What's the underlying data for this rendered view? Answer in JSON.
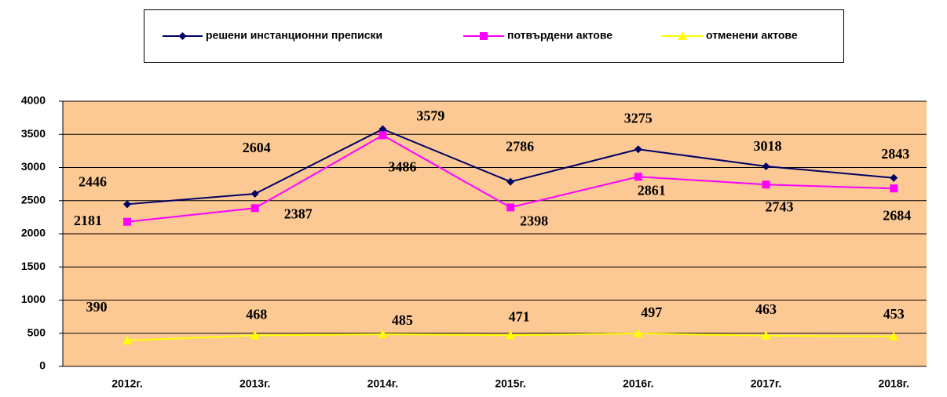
{
  "chart_data": {
    "type": "line",
    "categories": [
      "2012г.",
      "2013г.",
      "2014г.",
      "2015г.",
      "2016г.",
      "2017г.",
      "2018г."
    ],
    "series": [
      {
        "name": "решени инстанционни преписки",
        "color": "#000066",
        "marker": "diamond",
        "values": [
          2446,
          2604,
          3579,
          2786,
          3275,
          3018,
          2843
        ]
      },
      {
        "name": "потвърдени актове",
        "color": "#ff00ff",
        "marker": "square",
        "values": [
          2181,
          2387,
          3486,
          2398,
          2861,
          2743,
          2684
        ]
      },
      {
        "name": "отменени актове",
        "color": "#ffff00",
        "marker": "triangle",
        "values": [
          390,
          468,
          485,
          471,
          497,
          463,
          453
        ]
      }
    ],
    "ylim": [
      0,
      4000
    ],
    "yticks": [
      0,
      500,
      1000,
      1500,
      2000,
      2500,
      3000,
      3500,
      4000
    ],
    "grid": true,
    "legend": "top"
  }
}
